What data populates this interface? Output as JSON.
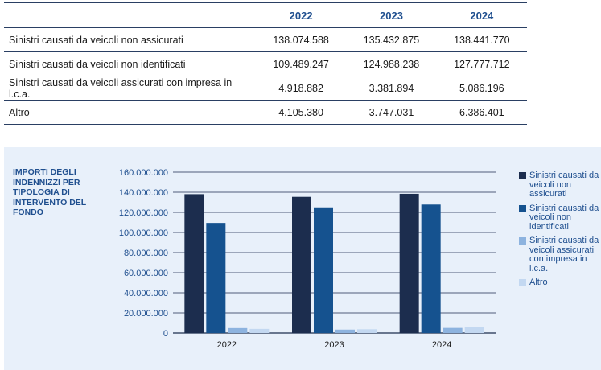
{
  "table": {
    "headers": [
      "",
      "2022",
      "2023",
      "2024"
    ],
    "rows": [
      {
        "label": "Sinistri causati da veicoli non assicurati",
        "values": [
          "138.074.588",
          "135.432.875",
          "138.441.770"
        ]
      },
      {
        "label": "Sinistri causati da veicoli non identificati",
        "values": [
          "109.489.247",
          "124.988.238",
          "127.777.712"
        ]
      },
      {
        "label": "Sinistri causati da veicoli assicurati con impresa in l.c.a.",
        "values": [
          "4.918.882",
          "3.381.894",
          "5.086.196"
        ]
      },
      {
        "label": "Altro",
        "values": [
          "4.105.380",
          "3.747.031",
          "6.386.401"
        ]
      }
    ]
  },
  "chart_data": {
    "type": "bar",
    "title": "IMPORTI DEGLI INDENNIZZI PER TIPOLOGIA DI INTERVENTO DEL FONDO",
    "categories": [
      "2022",
      "2023",
      "2024"
    ],
    "series": [
      {
        "name": "Sinistri causati da veicoli non assicurati",
        "color": "#1c2d4e",
        "values": [
          138074588,
          135432875,
          138441770
        ]
      },
      {
        "name": "Sinistri causati da veicoli non identificati",
        "color": "#15528f",
        "values": [
          109489247,
          124988238,
          127777712
        ]
      },
      {
        "name": "Sinistri causati da veicoli assicurati con impresa in l.c.a.",
        "color": "#8db3df",
        "values": [
          4918882,
          3381894,
          5086196
        ]
      },
      {
        "name": "Altro",
        "color": "#c3d8f1",
        "values": [
          4105380,
          3747031,
          6386401
        ]
      }
    ],
    "ylim": [
      0,
      160000000
    ],
    "yticks": [
      "0",
      "20.000.000",
      "40.000.000",
      "60.000.000",
      "80.000.000",
      "100.000.000",
      "120.000.000",
      "140.000.000",
      "160.000.000"
    ],
    "xlabel": "",
    "ylabel": "",
    "grid": true,
    "legend_position": "right"
  }
}
